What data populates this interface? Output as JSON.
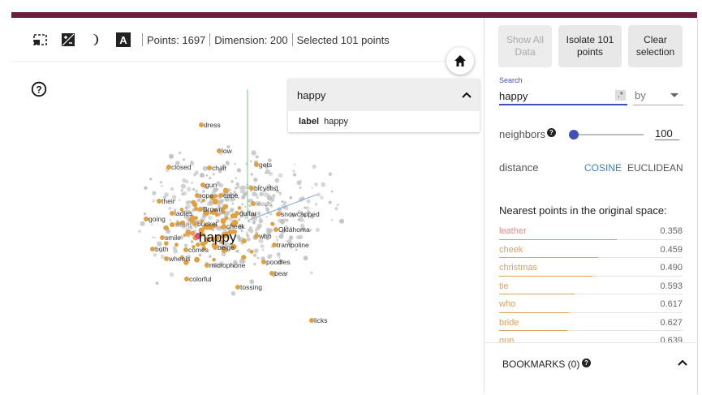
{
  "toolbar": {
    "points_text": "Points: 1697",
    "dimension_text": "Dimension: 200",
    "selected_text": "Selected 101 points",
    "icons": [
      "selection-box-icon",
      "night-mode-icon",
      "moon-icon",
      "label-a-icon"
    ]
  },
  "search_dropdown": {
    "query": "happy",
    "row_key": "label",
    "row_value": "happy"
  },
  "plot": {
    "center_label": "happy",
    "highlight_color": "#e0a040",
    "labels": [
      "dress",
      "low",
      "closed",
      "chair",
      "gets",
      "gun",
      "bicyclist",
      "rope",
      "cape",
      "their",
      "leaps",
      "ladies",
      "Brown",
      "guitar",
      "snowcapped",
      "going",
      "infant",
      "bucket",
      "cheek",
      "Oklahoma",
      "smile",
      "who",
      "both",
      "comes",
      "beige",
      "trampoline",
      "wheels",
      "poodles",
      "microphone",
      "bear",
      "colorful",
      "tossing",
      "licks"
    ]
  },
  "panel": {
    "show_all_label": "Show All Data",
    "isolate_label": "Isolate 101 points",
    "clear_label": "Clear selection",
    "search_label": "Search",
    "search_value": "happy",
    "regex_label": ".*",
    "by_label": "by",
    "neighbors_label": "neighbors",
    "neighbors_value": "100",
    "distance_label": "distance",
    "cosine_label": "COSINE",
    "euclidean_label": "EUCLIDEAN",
    "nearest_title": "Nearest points in the original space:",
    "nearest": [
      {
        "word": "leather",
        "value": "0.358",
        "fraction": 0.64,
        "color": "#e38a8a"
      },
      {
        "word": "cheek",
        "value": "0.459",
        "fraction": 0.54,
        "color": "#e0a060"
      },
      {
        "word": "christmas",
        "value": "0.490",
        "fraction": 0.51,
        "color": "#e0a060"
      },
      {
        "word": "tie",
        "value": "0.593",
        "fraction": 0.41,
        "color": "#e0a060"
      },
      {
        "word": "who",
        "value": "0.617",
        "fraction": 0.38,
        "color": "#e0a060"
      },
      {
        "word": "bride",
        "value": "0.627",
        "fraction": 0.37,
        "color": "#e0a060"
      },
      {
        "word": "gun",
        "value": "0.639",
        "fraction": 0.36,
        "color": "#e0a060"
      }
    ],
    "bookmarks_label": "BOOKMARKS (0)"
  }
}
